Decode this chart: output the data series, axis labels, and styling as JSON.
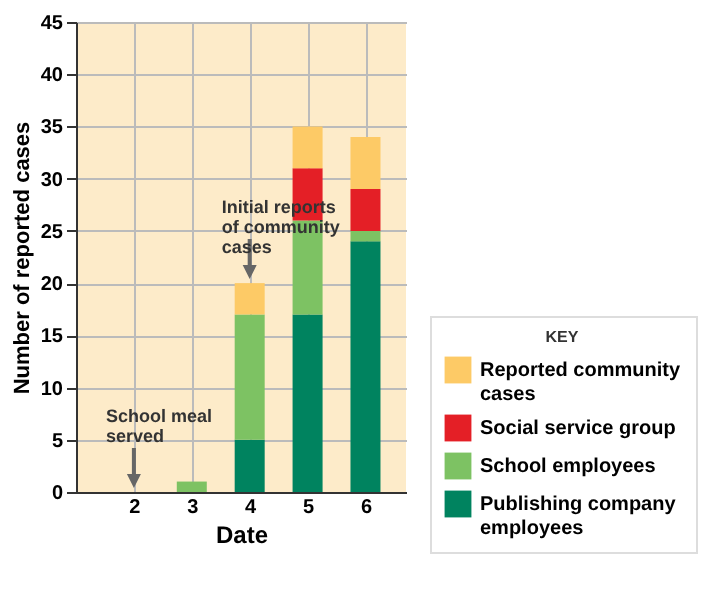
{
  "chart_data": {
    "type": "bar",
    "stacked": true,
    "xlabel": "Date",
    "ylabel": "Number of reported cases",
    "legend_title": "KEY",
    "x": [
      2,
      3,
      4,
      5,
      6
    ],
    "xlim": [
      1,
      6.7
    ],
    "xticks": [
      2,
      3,
      4,
      5,
      6
    ],
    "ylim": [
      0,
      45
    ],
    "yticks": [
      0,
      5,
      10,
      15,
      20,
      25,
      30,
      35,
      40,
      45
    ],
    "series": [
      {
        "name": "Publishing company employees",
        "color": "#00835f",
        "values": [
          0,
          0,
          5,
          17,
          24
        ]
      },
      {
        "name": "School employees",
        "color": "#7dc263",
        "values": [
          0,
          1,
          12,
          9,
          1
        ]
      },
      {
        "name": "Social service group",
        "color": "#e41f26",
        "values": [
          0,
          0,
          0,
          5,
          4
        ]
      },
      {
        "name": "Reported community cases",
        "color": "#fdca66",
        "values": [
          0,
          0,
          3,
          4,
          5
        ]
      }
    ],
    "annotations": [
      {
        "text": "School meal served",
        "x": 2,
        "y": 0
      },
      {
        "text": "Initial reports of community cases",
        "x": 4,
        "y": 20
      }
    ],
    "grid": true,
    "legend": "bottom right"
  }
}
